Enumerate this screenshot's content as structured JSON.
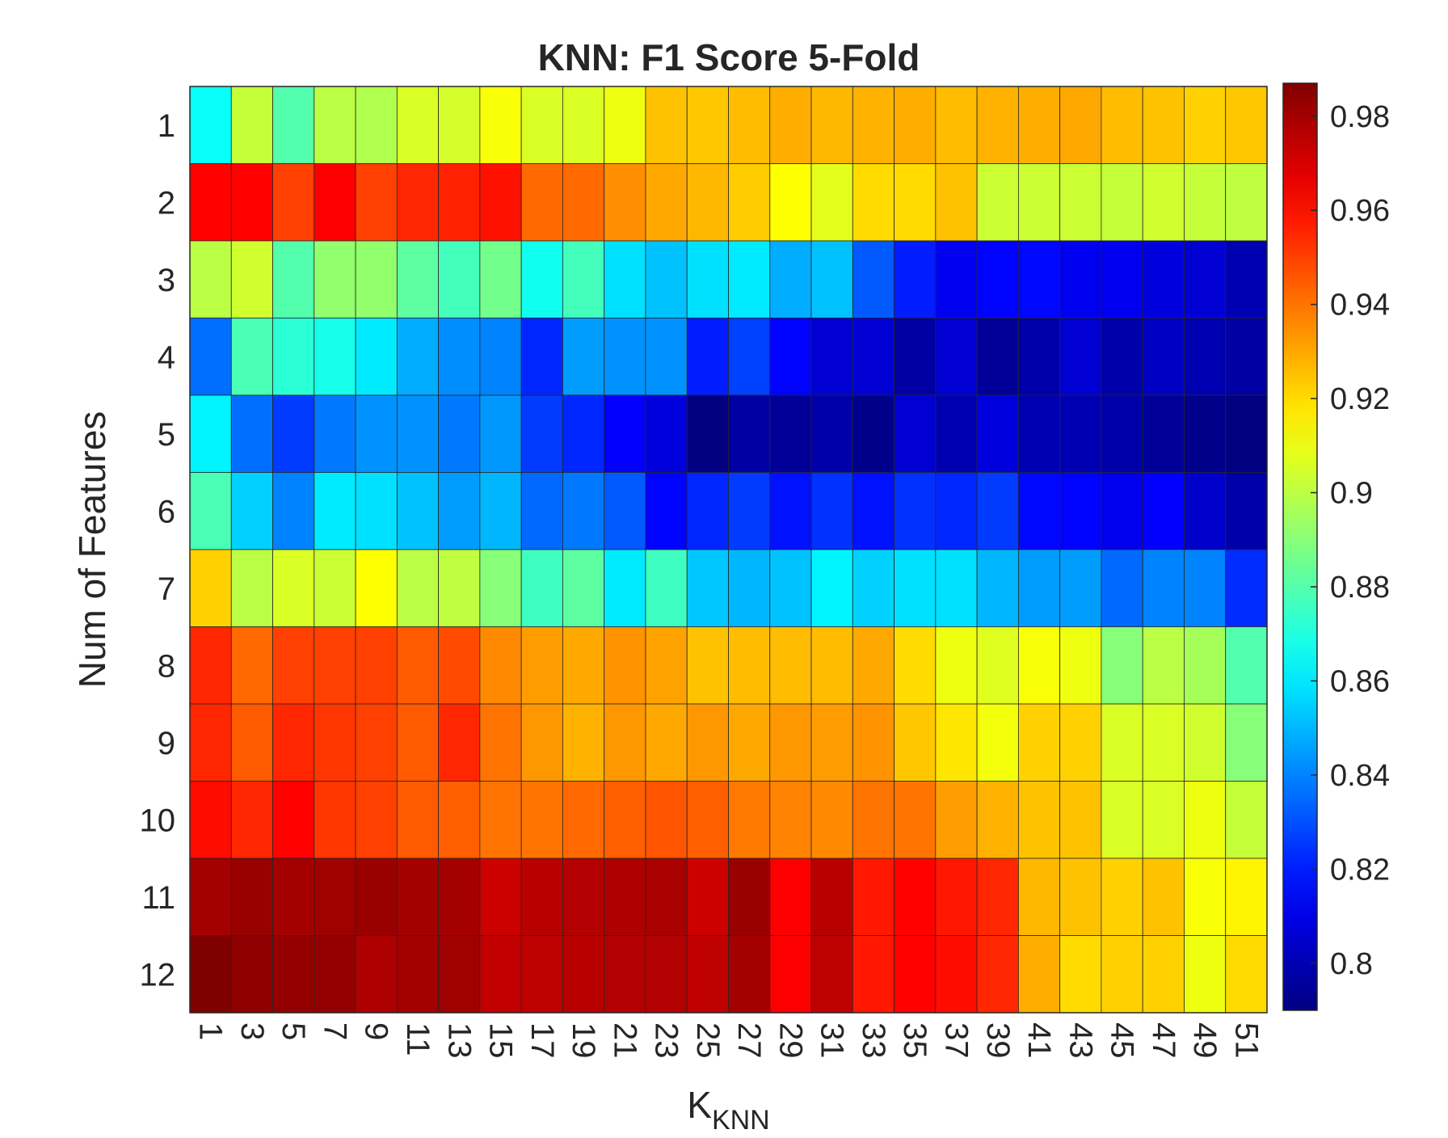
{
  "chart_data": {
    "type": "heatmap",
    "title": "KNN: F1 Score 5-Fold",
    "xlabel": "K",
    "xlabel_subscript": "KNN",
    "ylabel": "Num of Features",
    "x": [
      "1",
      "3",
      "5",
      "7",
      "9",
      "11",
      "13",
      "15",
      "17",
      "19",
      "21",
      "23",
      "25",
      "27",
      "29",
      "31",
      "33",
      "35",
      "37",
      "39",
      "41",
      "43",
      "45",
      "47",
      "49",
      "51"
    ],
    "y": [
      "1",
      "2",
      "3",
      "4",
      "5",
      "6",
      "7",
      "8",
      "9",
      "10",
      "11",
      "12"
    ],
    "colormap": "jet",
    "clim": [
      0.79,
      0.987
    ],
    "colorbar_ticks": [
      "0.8",
      "0.82",
      "0.84",
      "0.86",
      "0.88",
      "0.9",
      "0.92",
      "0.94",
      "0.96",
      "0.98"
    ],
    "colorbar_tick_values": [
      0.8,
      0.82,
      0.84,
      0.86,
      0.88,
      0.9,
      0.92,
      0.94,
      0.96,
      0.98
    ],
    "values": [
      [
        0.865,
        0.902,
        0.88,
        0.9,
        0.898,
        0.906,
        0.905,
        0.912,
        0.906,
        0.906,
        0.91,
        0.925,
        0.924,
        0.926,
        0.929,
        0.927,
        0.928,
        0.929,
        0.926,
        0.928,
        0.929,
        0.93,
        0.926,
        0.925,
        0.922,
        0.924
      ],
      [
        0.962,
        0.962,
        0.95,
        0.963,
        0.95,
        0.955,
        0.956,
        0.959,
        0.942,
        0.942,
        0.935,
        0.93,
        0.927,
        0.923,
        0.913,
        0.908,
        0.92,
        0.92,
        0.925,
        0.903,
        0.903,
        0.903,
        0.902,
        0.904,
        0.902,
        0.901
      ],
      [
        0.9,
        0.904,
        0.88,
        0.892,
        0.892,
        0.882,
        0.877,
        0.886,
        0.867,
        0.877,
        0.858,
        0.852,
        0.858,
        0.86,
        0.848,
        0.852,
        0.832,
        0.82,
        0.812,
        0.815,
        0.816,
        0.812,
        0.812,
        0.808,
        0.806,
        0.8
      ],
      [
        0.836,
        0.878,
        0.872,
        0.868,
        0.86,
        0.848,
        0.842,
        0.84,
        0.822,
        0.845,
        0.843,
        0.843,
        0.82,
        0.827,
        0.815,
        0.806,
        0.806,
        0.797,
        0.806,
        0.795,
        0.798,
        0.806,
        0.798,
        0.803,
        0.8,
        0.797
      ],
      [
        0.862,
        0.836,
        0.826,
        0.838,
        0.843,
        0.843,
        0.838,
        0.844,
        0.826,
        0.822,
        0.814,
        0.808,
        0.79,
        0.797,
        0.795,
        0.798,
        0.792,
        0.806,
        0.8,
        0.808,
        0.8,
        0.8,
        0.798,
        0.795,
        0.792,
        0.79
      ],
      [
        0.878,
        0.855,
        0.84,
        0.86,
        0.858,
        0.852,
        0.845,
        0.85,
        0.835,
        0.838,
        0.832,
        0.815,
        0.822,
        0.826,
        0.818,
        0.824,
        0.818,
        0.824,
        0.822,
        0.826,
        0.816,
        0.815,
        0.811,
        0.814,
        0.805,
        0.798
      ],
      [
        0.922,
        0.9,
        0.906,
        0.903,
        0.913,
        0.9,
        0.901,
        0.89,
        0.876,
        0.882,
        0.86,
        0.876,
        0.853,
        0.85,
        0.852,
        0.862,
        0.855,
        0.858,
        0.858,
        0.85,
        0.845,
        0.845,
        0.835,
        0.84,
        0.84,
        0.823
      ],
      [
        0.955,
        0.942,
        0.95,
        0.95,
        0.95,
        0.945,
        0.948,
        0.936,
        0.932,
        0.93,
        0.934,
        0.931,
        0.925,
        0.926,
        0.926,
        0.926,
        0.93,
        0.92,
        0.91,
        0.907,
        0.912,
        0.91,
        0.89,
        0.9,
        0.896,
        0.88
      ],
      [
        0.955,
        0.945,
        0.955,
        0.952,
        0.95,
        0.945,
        0.955,
        0.94,
        0.933,
        0.928,
        0.933,
        0.93,
        0.933,
        0.93,
        0.933,
        0.932,
        0.934,
        0.924,
        0.918,
        0.911,
        0.922,
        0.922,
        0.906,
        0.906,
        0.904,
        0.89
      ],
      [
        0.96,
        0.955,
        0.962,
        0.952,
        0.95,
        0.945,
        0.944,
        0.94,
        0.94,
        0.942,
        0.944,
        0.946,
        0.944,
        0.939,
        0.937,
        0.936,
        0.94,
        0.94,
        0.932,
        0.928,
        0.925,
        0.925,
        0.906,
        0.906,
        0.91,
        0.902
      ],
      [
        0.98,
        0.982,
        0.98,
        0.981,
        0.982,
        0.98,
        0.98,
        0.972,
        0.976,
        0.977,
        0.978,
        0.979,
        0.972,
        0.982,
        0.963,
        0.976,
        0.958,
        0.962,
        0.958,
        0.955,
        0.927,
        0.925,
        0.922,
        0.925,
        0.912,
        0.915
      ],
      [
        0.987,
        0.984,
        0.983,
        0.983,
        0.978,
        0.98,
        0.981,
        0.974,
        0.975,
        0.976,
        0.977,
        0.977,
        0.975,
        0.98,
        0.963,
        0.975,
        0.958,
        0.962,
        0.96,
        0.955,
        0.929,
        0.92,
        0.922,
        0.922,
        0.91,
        0.92
      ]
    ]
  }
}
